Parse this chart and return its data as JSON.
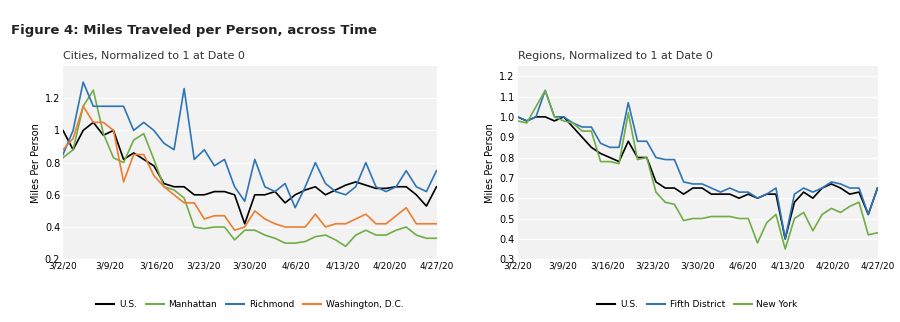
{
  "title": "Figure 4: Miles Traveled per Person, across Time",
  "title_bar_color": "#5b9bd5",
  "background_color": "#ffffff",
  "chart1_title": "Cities, Normalized to 1 at Date 0",
  "chart2_title": "Regions, Normalized to 1 at Date 0",
  "ylabel": "Miles Per Person",
  "x_labels": [
    "3/2/20",
    "3/9/20",
    "3/16/20",
    "3/23/20",
    "3/30/20",
    "4/6/20",
    "4/13/20",
    "4/20/20",
    "4/27/20"
  ],
  "chart1_ylim": [
    0.2,
    1.4
  ],
  "chart1_yticks": [
    0.2,
    0.4,
    0.6,
    0.8,
    1.0,
    1.2
  ],
  "chart2_ylim": [
    0.3,
    1.25
  ],
  "chart2_yticks": [
    0.3,
    0.4,
    0.5,
    0.6,
    0.7,
    0.8,
    0.9,
    1.0,
    1.1,
    1.2
  ],
  "us_color": "#000000",
  "manhattan_color": "#70ad47",
  "richmond_color": "#2e75b6",
  "dc_color": "#ed7d31",
  "fifth_color": "#2e75b6",
  "newyork_color": "#70ad47",
  "chart_bg": "#f2f2f2",
  "grid_color": "#ffffff",
  "us_cities": [
    1.0,
    0.88,
    1.0,
    1.05,
    0.97,
    1.0,
    0.82,
    0.86,
    0.82,
    0.78,
    0.67,
    0.65,
    0.65,
    0.6,
    0.6,
    0.62,
    0.62,
    0.6,
    0.42,
    0.6,
    0.6,
    0.62,
    0.55,
    0.6,
    0.63,
    0.65,
    0.6,
    0.63,
    0.66,
    0.68,
    0.66,
    0.64,
    0.64,
    0.65,
    0.65,
    0.6,
    0.53,
    0.65
  ],
  "manhattan_cities": [
    0.83,
    0.88,
    1.15,
    1.25,
    0.98,
    0.83,
    0.8,
    0.94,
    0.98,
    0.82,
    0.65,
    0.63,
    0.58,
    0.4,
    0.39,
    0.4,
    0.4,
    0.32,
    0.38,
    0.38,
    0.35,
    0.33,
    0.3,
    0.3,
    0.31,
    0.34,
    0.35,
    0.32,
    0.28,
    0.35,
    0.38,
    0.35,
    0.35,
    0.38,
    0.4,
    0.35,
    0.33,
    0.33
  ],
  "richmond_cities": [
    0.85,
    1.0,
    1.3,
    1.15,
    1.15,
    1.15,
    1.15,
    1.0,
    1.05,
    1.0,
    0.92,
    0.88,
    1.26,
    0.82,
    0.88,
    0.78,
    0.82,
    0.65,
    0.56,
    0.82,
    0.65,
    0.62,
    0.67,
    0.52,
    0.65,
    0.8,
    0.67,
    0.62,
    0.6,
    0.65,
    0.8,
    0.65,
    0.62,
    0.65,
    0.75,
    0.65,
    0.62,
    0.75
  ],
  "dc_cities": [
    0.88,
    0.95,
    1.15,
    1.05,
    1.05,
    1.0,
    0.68,
    0.85,
    0.85,
    0.72,
    0.65,
    0.6,
    0.55,
    0.55,
    0.45,
    0.47,
    0.47,
    0.38,
    0.4,
    0.5,
    0.45,
    0.42,
    0.4,
    0.4,
    0.4,
    0.48,
    0.4,
    0.42,
    0.42,
    0.45,
    0.48,
    0.42,
    0.42,
    0.47,
    0.52,
    0.42,
    0.42,
    0.42
  ],
  "us_regions": [
    1.0,
    0.98,
    1.0,
    1.0,
    0.98,
    1.0,
    0.95,
    0.9,
    0.85,
    0.82,
    0.8,
    0.78,
    0.88,
    0.8,
    0.8,
    0.68,
    0.65,
    0.65,
    0.62,
    0.65,
    0.65,
    0.62,
    0.62,
    0.62,
    0.6,
    0.62,
    0.6,
    0.62,
    0.62,
    0.4,
    0.58,
    0.63,
    0.6,
    0.65,
    0.67,
    0.65,
    0.62,
    0.63,
    0.52,
    0.65
  ],
  "fifth_regions": [
    1.0,
    0.98,
    1.0,
    1.13,
    1.0,
    1.0,
    0.97,
    0.95,
    0.95,
    0.87,
    0.85,
    0.85,
    1.07,
    0.88,
    0.88,
    0.8,
    0.79,
    0.79,
    0.68,
    0.67,
    0.67,
    0.65,
    0.63,
    0.65,
    0.63,
    0.63,
    0.6,
    0.62,
    0.65,
    0.4,
    0.62,
    0.65,
    0.63,
    0.65,
    0.68,
    0.67,
    0.65,
    0.65,
    0.52,
    0.65
  ],
  "newyork_regions": [
    0.98,
    0.97,
    1.05,
    1.13,
    1.0,
    0.98,
    0.97,
    0.93,
    0.93,
    0.78,
    0.78,
    0.77,
    1.02,
    0.79,
    0.8,
    0.63,
    0.58,
    0.57,
    0.49,
    0.5,
    0.5,
    0.51,
    0.51,
    0.51,
    0.5,
    0.5,
    0.38,
    0.48,
    0.52,
    0.35,
    0.5,
    0.53,
    0.44,
    0.52,
    0.55,
    0.53,
    0.56,
    0.58,
    0.42,
    0.43
  ]
}
